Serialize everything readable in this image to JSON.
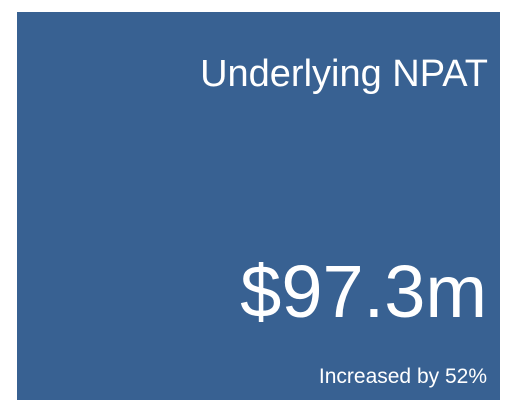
{
  "card": {
    "title": "Underlying NPAT",
    "value": "$97.3m",
    "note": "Increased by 52%"
  }
}
